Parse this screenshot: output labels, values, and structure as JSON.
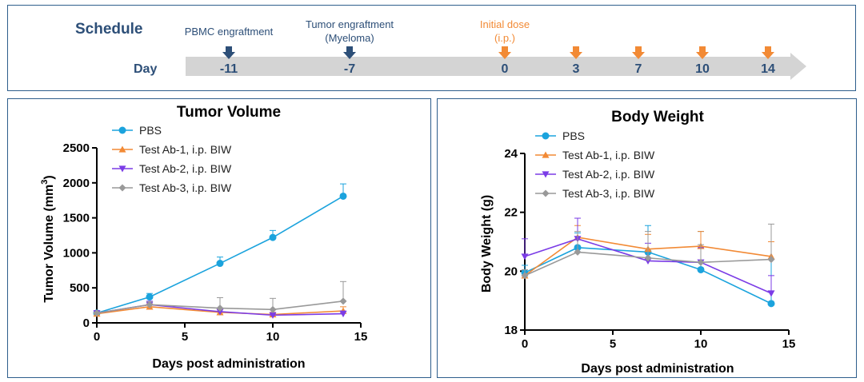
{
  "schedule": {
    "title": "Schedule",
    "day_label": "Day",
    "colors": {
      "dark": "#2d4f78",
      "orange": "#f28a35",
      "arrow": "#d4d4d4"
    },
    "events": [
      {
        "label": "PBMC engraftment",
        "label2": "",
        "day": "-11",
        "color": "dark"
      },
      {
        "label": "Tumor engraftment",
        "label2": "(Myeloma)",
        "day": "-7",
        "color": "dark"
      },
      {
        "label": "Initial dose",
        "label2": "(i.p.)",
        "day": "0",
        "color": "orange"
      },
      {
        "label": "",
        "label2": "",
        "day": "3",
        "color": "orange"
      },
      {
        "label": "",
        "label2": "",
        "day": "7",
        "color": "orange"
      },
      {
        "label": "",
        "label2": "",
        "day": "10",
        "color": "orange"
      },
      {
        "label": "",
        "label2": "",
        "day": "14",
        "color": "orange"
      }
    ]
  },
  "chart_data": [
    {
      "type": "line",
      "title": "Tumor Volume",
      "xlabel": "Days post administration",
      "ylabel": "Tumor Volume (mm",
      "ylabel_sup": "3",
      "ylabel_end": ")",
      "xlim": [
        0,
        15
      ],
      "ylim": [
        0,
        2500
      ],
      "xticks": [
        0,
        5,
        10,
        15
      ],
      "yticks": [
        0,
        500,
        1000,
        1500,
        2000,
        2500
      ],
      "x": [
        0,
        3,
        7,
        10,
        14
      ],
      "series": [
        {
          "name": "PBS",
          "color": "#1ba3dd",
          "marker": "circle",
          "values": [
            140,
            370,
            850,
            1220,
            1810
          ],
          "errors": [
            20,
            50,
            90,
            100,
            175
          ]
        },
        {
          "name": "Test Ab-1, i.p. BIW",
          "color": "#f28a35",
          "marker": "triangle-up",
          "values": [
            130,
            230,
            150,
            120,
            170
          ],
          "errors": [
            15,
            40,
            40,
            30,
            60
          ]
        },
        {
          "name": "Test Ab-2, i.p. BIW",
          "color": "#7b3ce6",
          "marker": "triangle-down",
          "values": [
            140,
            260,
            160,
            110,
            130
          ],
          "errors": [
            15,
            50,
            50,
            30,
            40
          ]
        },
        {
          "name": "Test Ab-3, i.p. BIW",
          "color": "#999999",
          "marker": "diamond",
          "values": [
            140,
            260,
            210,
            190,
            310
          ],
          "errors": [
            15,
            40,
            150,
            160,
            280
          ]
        }
      ]
    },
    {
      "type": "line",
      "title": "Body Weight",
      "xlabel": "Days post administration",
      "ylabel": "Body Weight (g)",
      "xlim": [
        0,
        15
      ],
      "ylim": [
        18,
        24
      ],
      "xticks": [
        0,
        5,
        10,
        15
      ],
      "yticks": [
        18,
        20,
        22,
        24
      ],
      "x": [
        0,
        3,
        7,
        10,
        14
      ],
      "series": [
        {
          "name": "PBS",
          "color": "#1ba3dd",
          "marker": "circle",
          "values": [
            19.95,
            20.8,
            20.65,
            20.05,
            18.9
          ],
          "errors": [
            0.25,
            0.5,
            0.9,
            1.3,
            1.5
          ]
        },
        {
          "name": "Test Ab-1, i.p. BIW",
          "color": "#f28a35",
          "marker": "triangle-up",
          "values": [
            19.85,
            21.15,
            20.75,
            20.85,
            20.5
          ],
          "errors": [
            0.2,
            0.4,
            0.5,
            0.5,
            0.5
          ]
        },
        {
          "name": "Test Ab-2, i.p. BIW",
          "color": "#7b3ce6",
          "marker": "triangle-down",
          "values": [
            20.5,
            21.1,
            20.35,
            20.3,
            19.25
          ],
          "errors": [
            0.6,
            0.7,
            0.6,
            0.5,
            0.6
          ]
        },
        {
          "name": "Test Ab-3, i.p. BIW",
          "color": "#999999",
          "marker": "diamond",
          "values": [
            19.85,
            20.65,
            20.45,
            20.3,
            20.4
          ],
          "errors": [
            0.2,
            0.7,
            0.9,
            0.6,
            1.2
          ]
        }
      ]
    }
  ]
}
